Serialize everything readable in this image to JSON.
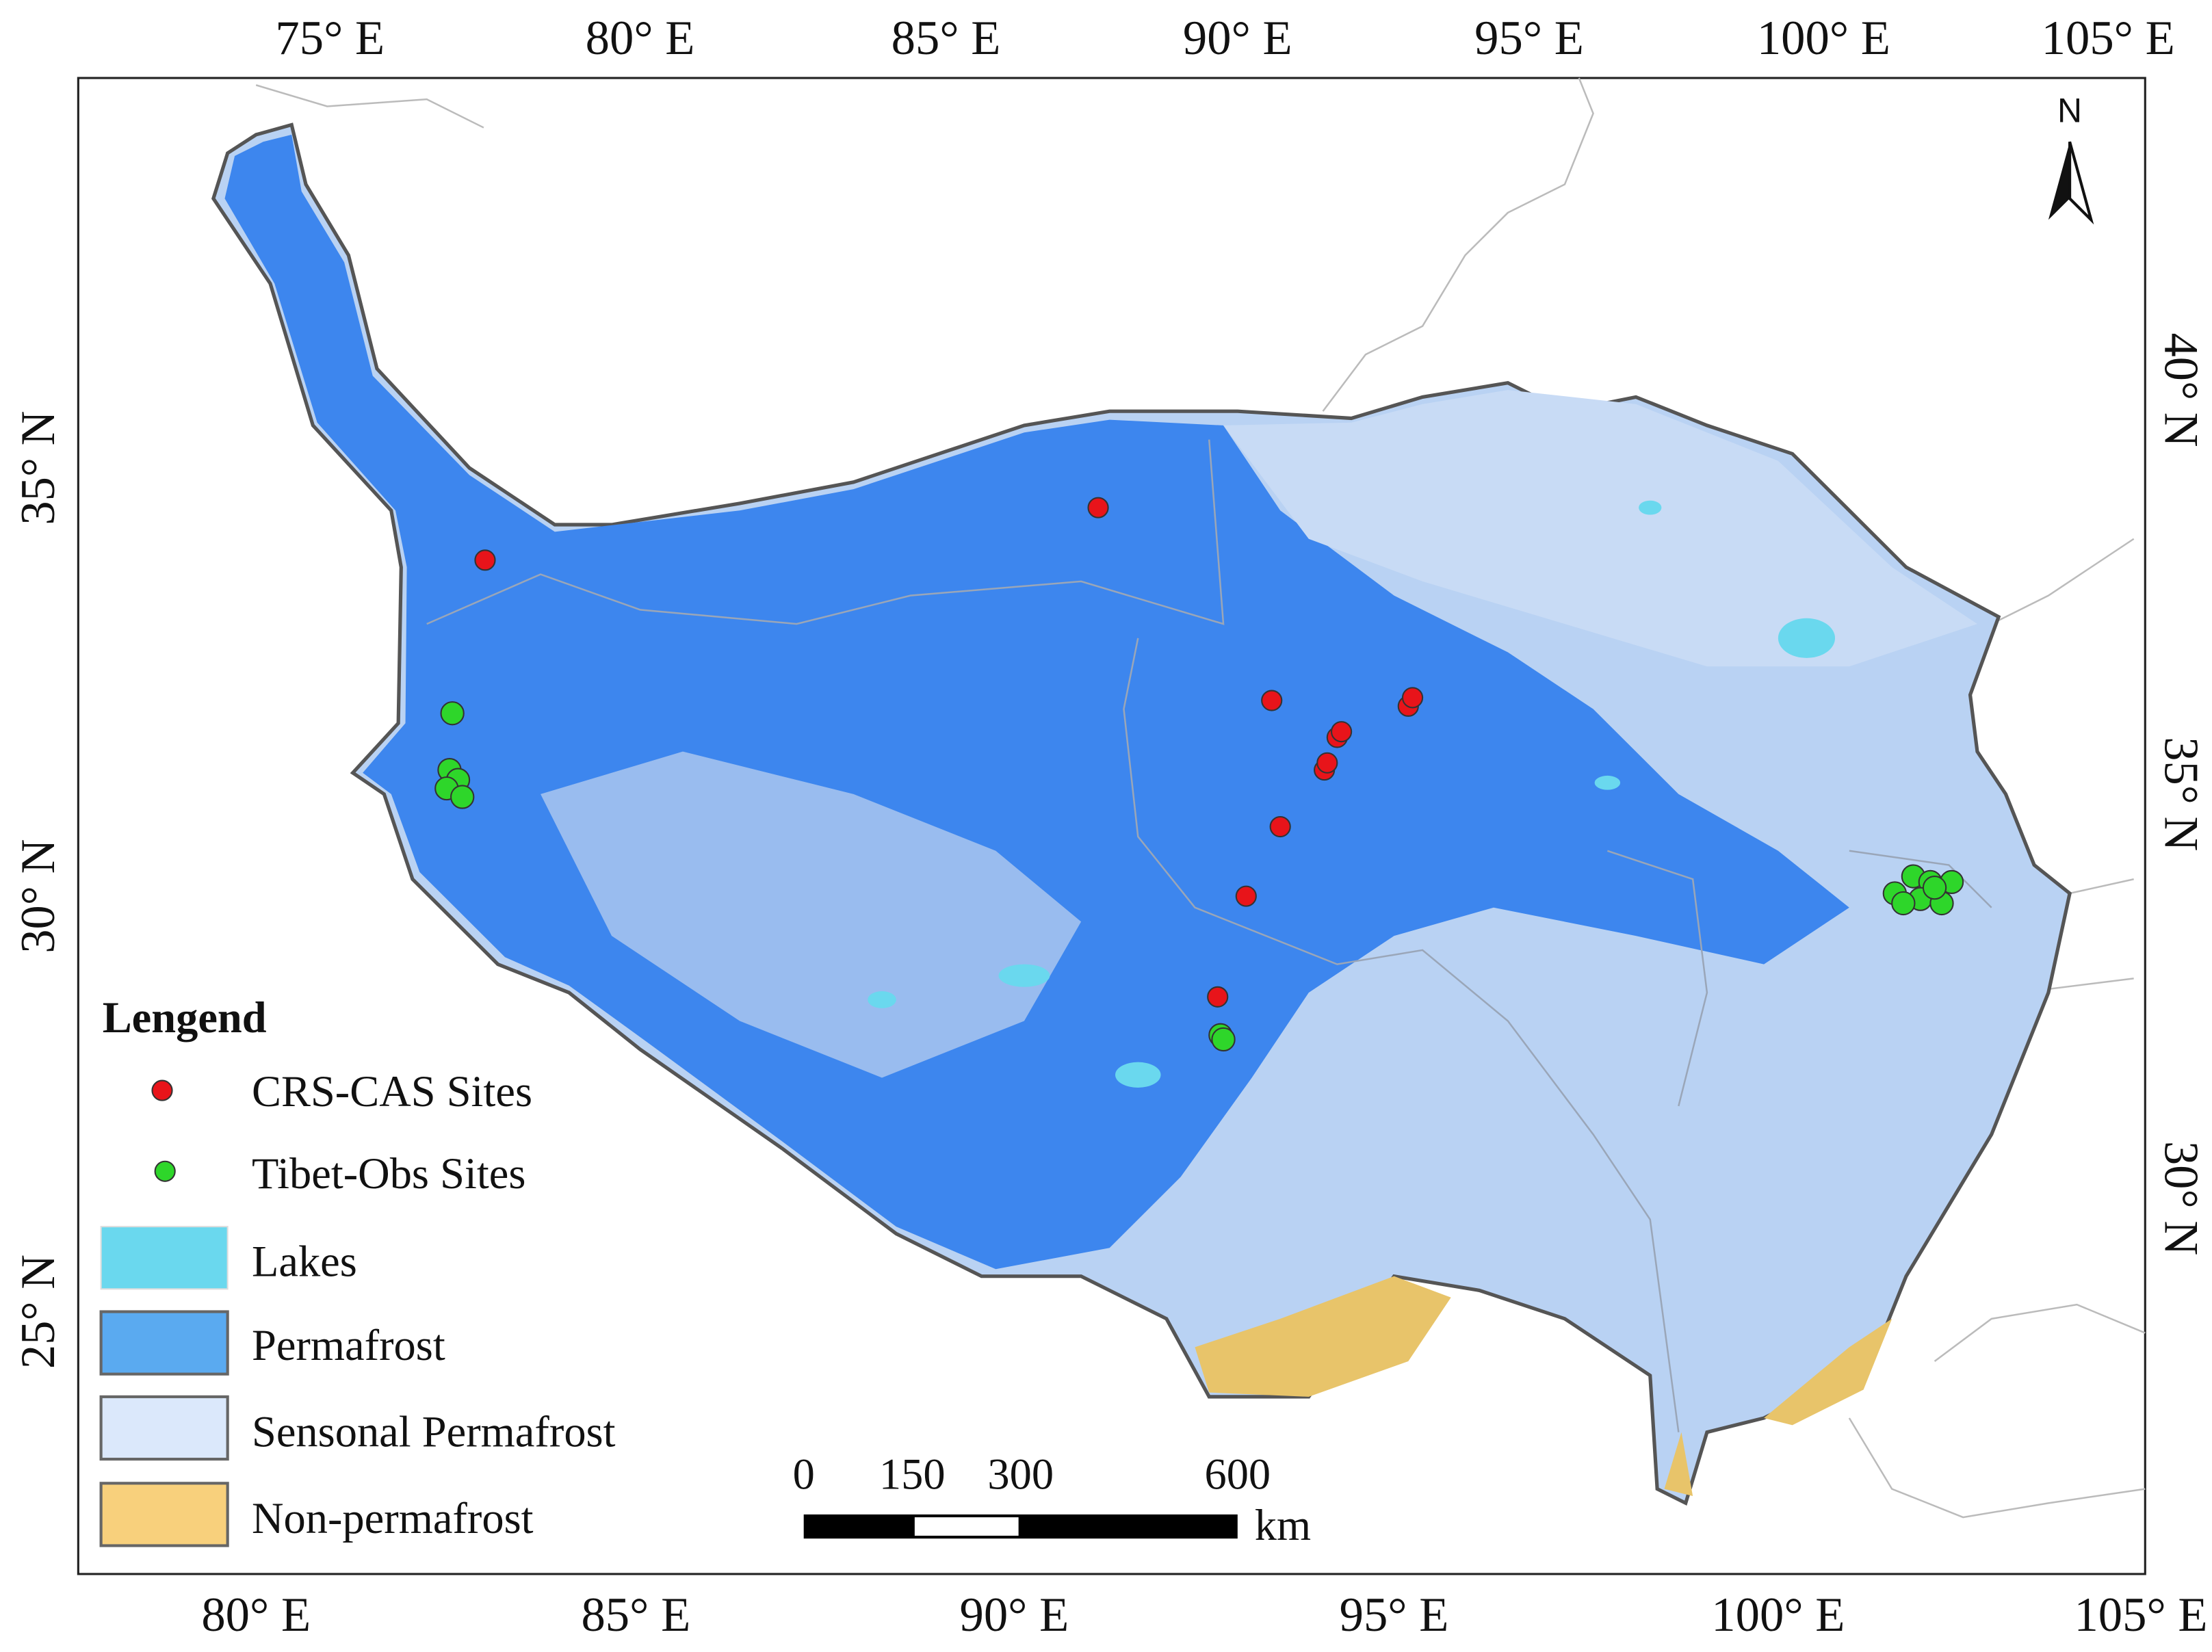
{
  "top_labels": [
    "75° E",
    "80° E",
    "85° E",
    "90° E",
    "95° E",
    "100° E",
    "105° E"
  ],
  "bottom_labels": [
    "80° E",
    "85° E",
    "90° E",
    "95° E",
    "100° E",
    "105° E"
  ],
  "left_labels": [
    "35° N",
    "30° N",
    "25° N"
  ],
  "right_labels": [
    "40° N",
    "35° N",
    "30° N"
  ],
  "north": "N",
  "legend": {
    "title": "Lengend",
    "items": [
      "CRS-CAS Sites",
      "Tibet-Obs Sites",
      "Lakes",
      "Permafrost",
      "Sensonal Permafrost",
      "Non-permafrost"
    ]
  },
  "scale_bar": {
    "ticks": [
      0,
      150,
      300,
      600
    ],
    "unit": "km"
  }
}
